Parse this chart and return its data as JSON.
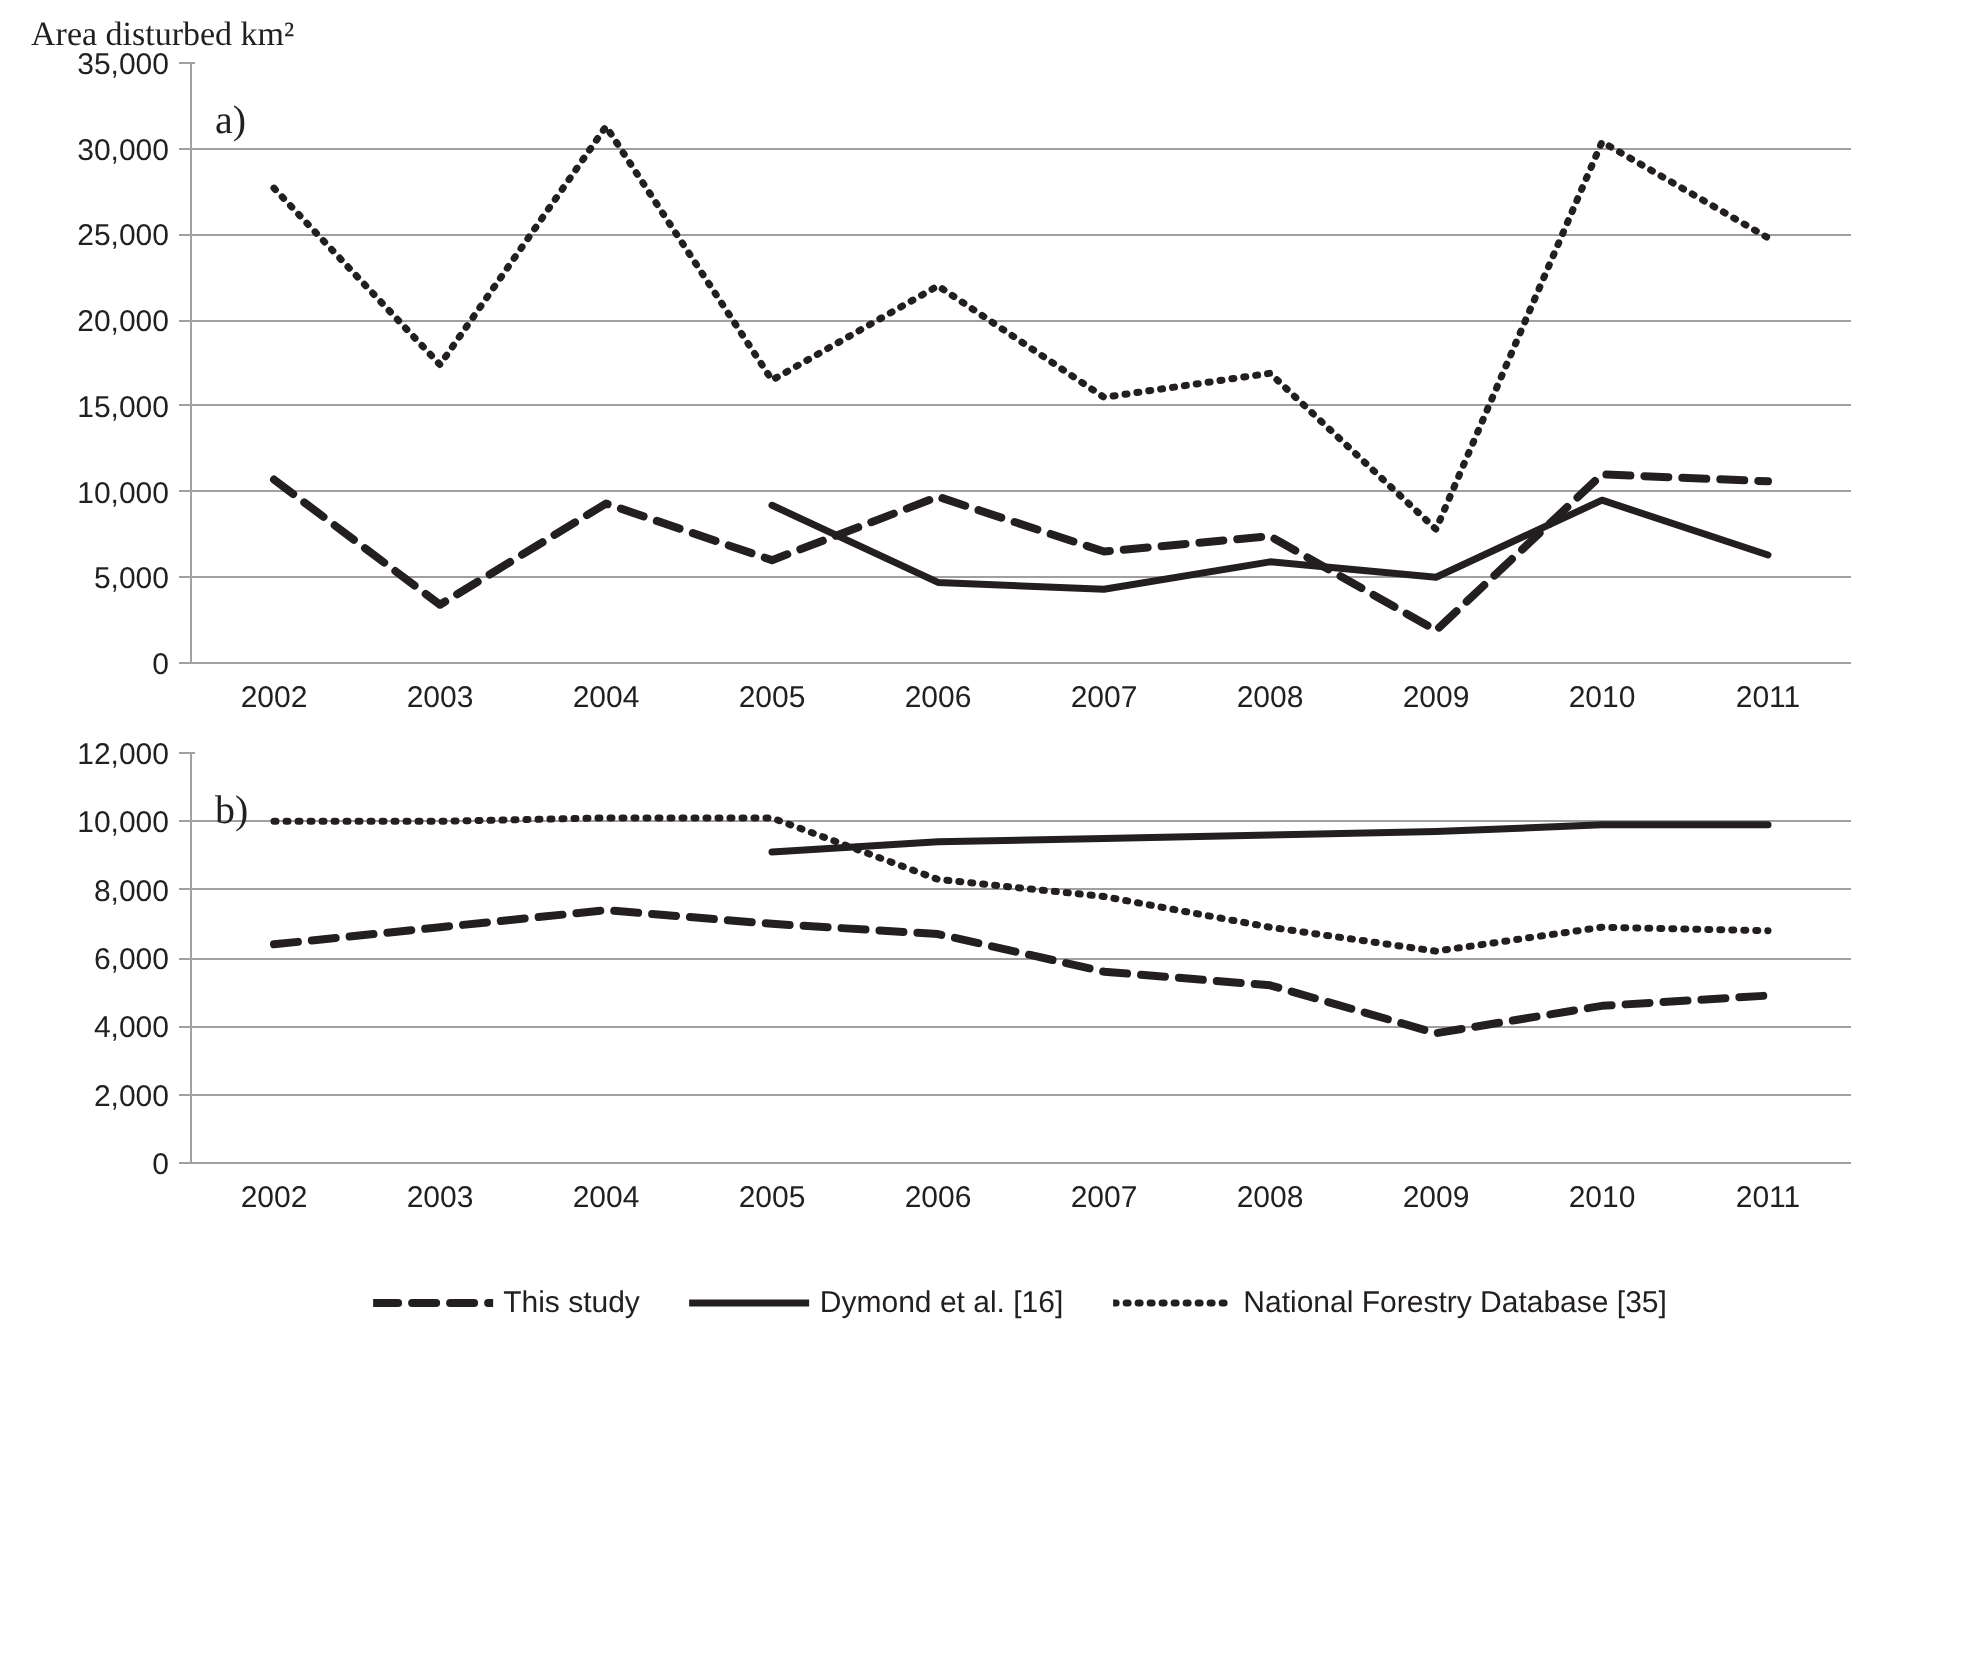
{
  "chart_data": [
    {
      "type": "line",
      "ylabel": "Area disturbed km²",
      "annotations": [
        "a)"
      ],
      "categories": [
        "2002",
        "2003",
        "2004",
        "2005",
        "2006",
        "2007",
        "2008",
        "2009",
        "2010",
        "2011"
      ],
      "series": [
        {
          "color": "#231f20",
          "line_style": "dashed",
          "values": [
            10700,
            3400,
            9300,
            6000,
            9700,
            6500,
            7400,
            1900,
            11000,
            10600
          ]
        },
        {
          "color": "#231f20",
          "line_style": "solid",
          "values": [
            null,
            null,
            null,
            9200,
            4700,
            4300,
            5900,
            5000,
            9500,
            6300
          ]
        },
        {
          "color": "#231f20",
          "line_style": "dotted",
          "values": [
            27700,
            17400,
            31300,
            16500,
            22000,
            15500,
            16900,
            7800,
            30400,
            24800
          ]
        }
      ],
      "ylim": [
        0,
        35000
      ],
      "yticks": [
        {
          "value": 0,
          "label": "0"
        },
        {
          "value": 5000,
          "label": "5,000"
        },
        {
          "value": 10000,
          "label": "10,000"
        },
        {
          "value": 15000,
          "label": "15,000"
        },
        {
          "value": 20000,
          "label": "20,000"
        },
        {
          "value": 25000,
          "label": "25,000"
        },
        {
          "value": 30000,
          "label": "30,000"
        },
        {
          "value": 35000,
          "label": "35,000"
        }
      ],
      "grid": "y"
    },
    {
      "type": "line",
      "annotations": [
        "b)"
      ],
      "categories": [
        "2002",
        "2003",
        "2004",
        "2005",
        "2006",
        "2007",
        "2008",
        "2009",
        "2010",
        "2011"
      ],
      "series": [
        {
          "name": "This study",
          "color": "#231f20",
          "line_style": "dashed",
          "values": [
            6400,
            6900,
            7400,
            7000,
            6700,
            5600,
            5200,
            3800,
            4600,
            4900
          ]
        },
        {
          "name": "Dymond et al. [16]",
          "color": "#231f20",
          "line_style": "solid",
          "values": [
            null,
            null,
            null,
            9100,
            9400,
            9500,
            9600,
            9700,
            9900,
            9900
          ]
        },
        {
          "name": "National Forestry Database [35]",
          "color": "#231f20",
          "line_style": "dotted",
          "values": [
            10000,
            10000,
            10100,
            10100,
            8300,
            7800,
            6900,
            6200,
            6900,
            6800
          ]
        }
      ],
      "ylim": [
        0,
        12000
      ],
      "yticks": [
        {
          "value": 0,
          "label": "0"
        },
        {
          "value": 2000,
          "label": "2,000"
        },
        {
          "value": 4000,
          "label": "4,000"
        },
        {
          "value": 6000,
          "label": "6,000"
        },
        {
          "value": 8000,
          "label": "8,000"
        },
        {
          "value": 10000,
          "label": "10,000"
        },
        {
          "value": 12000,
          "label": "12,000"
        }
      ],
      "grid": "y",
      "legend": "bottom"
    }
  ]
}
